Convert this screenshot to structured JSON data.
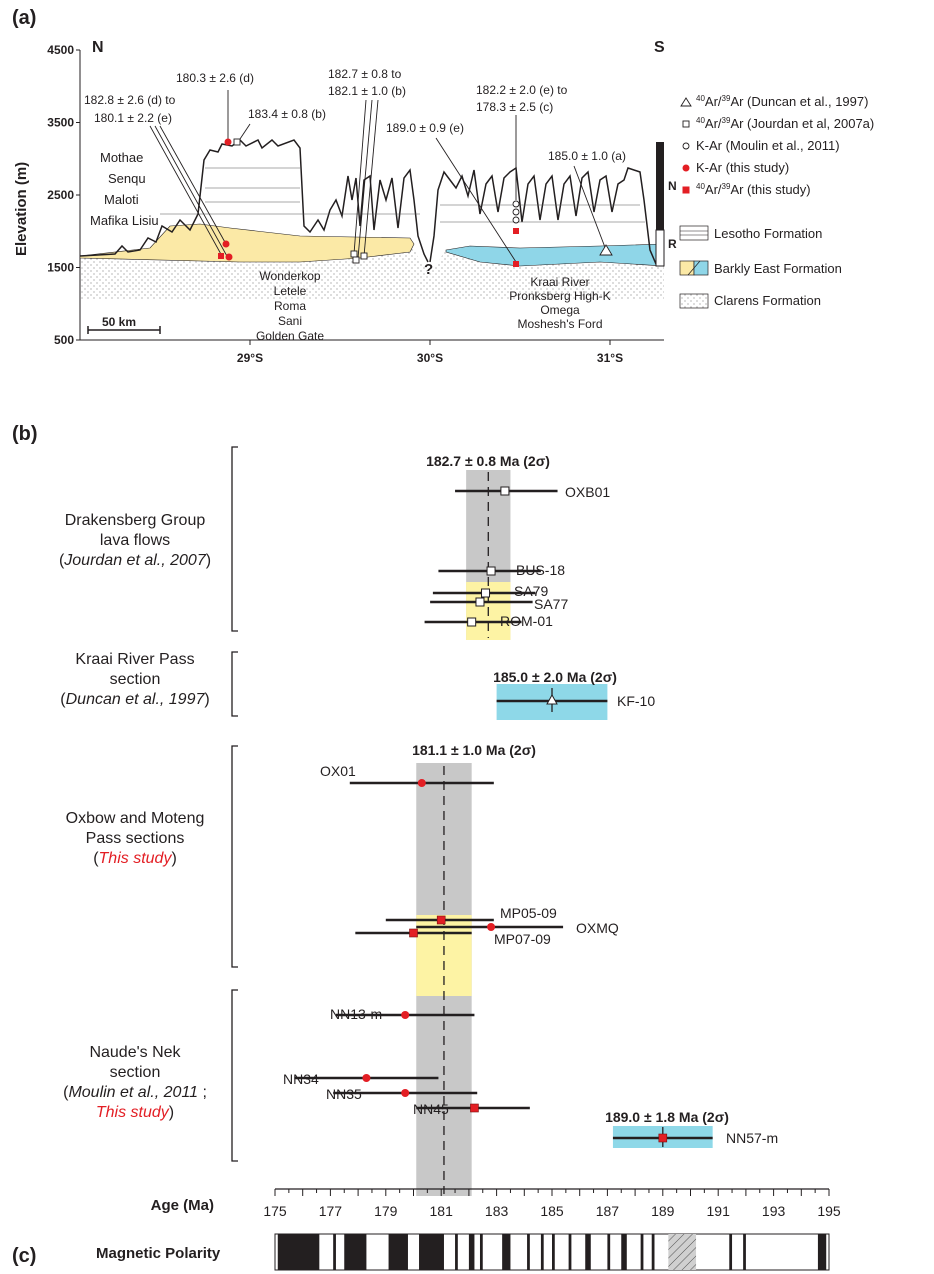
{
  "panel_a": {
    "label": "(a)",
    "north": "N",
    "south": "S",
    "ylabel": "Elevation (m)",
    "y_ticks": [
      {
        "v": 4500,
        "t": "4500"
      },
      {
        "v": 3500,
        "t": "3500"
      },
      {
        "v": 2500,
        "t": "2500"
      },
      {
        "v": 1500,
        "t": "1500"
      },
      {
        "v": 500,
        "t": "500"
      }
    ],
    "x_ticks": [
      {
        "v": 29,
        "t": "29°S"
      },
      {
        "v": 30,
        "t": "30°S"
      },
      {
        "v": 31,
        "t": "31°S"
      }
    ],
    "scale_bar": "50 km",
    "question_mark": "?",
    "formations_north": [
      "Mothae",
      "Senqu",
      "Maloti",
      "Mafika Lisiu"
    ],
    "formations_north_lower": [
      "Wonderkop",
      "Letele",
      "Roma",
      "Sani",
      "Golden Gate"
    ],
    "formations_south": [
      "Kraai River",
      "Pronksberg High-K",
      "Omega",
      "Moshesh's Ford"
    ],
    "age_labels": {
      "d1": "180.3 ± 2.6 (d)",
      "de": [
        "182.8 ± 2.6 (d) to",
        "180.1 ± 2.2 (e)"
      ],
      "b1": "183.4 ± 0.8 (b)",
      "b2": [
        "182.7 ± 0.8 to",
        "182.1 ± 1.0 (b)"
      ],
      "ec": [
        "182.2 ± 2.0 (e) to",
        "178.3 ± 2.5 (c)"
      ],
      "e1": "189.0 ± 0.9 (e)",
      "a1": "185.0 ± 1.0 (a)"
    },
    "polarity_column": {
      "n": "N",
      "r": "R"
    },
    "legend": [
      {
        "symbol": "triangle",
        "sup": "40",
        "mid": "Ar/",
        "sup2": "39",
        "text": "Ar (Duncan et al., 1997)"
      },
      {
        "symbol": "square-open",
        "sup": "40",
        "mid": "Ar/",
        "sup2": "39",
        "text": "Ar (Jourdan et al, 2007a)"
      },
      {
        "symbol": "circle-open",
        "sup": "",
        "mid": "",
        "sup2": "",
        "text": "K-Ar (Moulin et al., 2011)"
      },
      {
        "symbol": "circle-red",
        "sup": "",
        "mid": "",
        "sup2": "",
        "text": "K-Ar (this study)"
      },
      {
        "symbol": "square-red",
        "sup": "40",
        "mid": "Ar/",
        "sup2": "39",
        "text": "Ar (this study)"
      }
    ],
    "formation_legend": [
      "Lesotho Formation",
      "Barkly East Formation",
      "Clarens Formation"
    ]
  },
  "panel_b": {
    "label": "(b)",
    "groups": [
      {
        "lines": [
          "Drakensberg Group",
          "lava flows"
        ],
        "cite": "Jourdan et al., 2007",
        "cite_color": "#231f20"
      },
      {
        "lines": [
          "Kraai River Pass",
          "section"
        ],
        "cite": "Duncan et al., 1997",
        "cite_color": "#231f20"
      },
      {
        "lines": [
          "Oxbow and Moteng",
          "Pass sections"
        ],
        "cite": "This study",
        "cite_color": "#e31e24"
      },
      {
        "lines": [
          "Naude's Nek",
          "section"
        ],
        "cite": "Moulin et al., 2011",
        "cite_suffix": " ;",
        "cite2": "This study",
        "cite_color": "#231f20",
        "cite2_color": "#e31e24"
      }
    ],
    "means": [
      {
        "text": "182.7 ± 0.8 Ma (2σ)",
        "value": 182.7,
        "err": 0.8
      },
      {
        "text": "185.0 ± 2.0 Ma (2σ)",
        "value": 185.0,
        "err": 2.0
      },
      {
        "text": "181.1 ± 1.0 Ma (2σ)",
        "value": 181.1,
        "err": 1.0
      },
      {
        "text": "189.0 ± 1.8 Ma (2σ)",
        "value": 189.0,
        "err": 1.8
      }
    ]
  },
  "panel_c": {
    "label": "(c)",
    "title": "Magnetic Polarity"
  },
  "colors": {
    "gray_band": "#c8c8c8",
    "yellow_band": "#fdf3a4",
    "blue_band": "#8ed8e8",
    "red": "#e31e24",
    "dark": "#231f20",
    "barkly_fill": "#fbe9a6",
    "blue_fill": "#8fd6e8"
  },
  "chart_data": {
    "type": "scatter",
    "title": "",
    "xlabel": "Age (Ma)",
    "xlim": [
      175,
      195
    ],
    "x_tick_labels": [
      "175",
      "177",
      "179",
      "181",
      "183",
      "185",
      "187",
      "189",
      "191",
      "193",
      "195"
    ],
    "series": [
      {
        "name": "40Ar/39Ar (Jourdan et al, 2007a)",
        "marker": "square-open",
        "points": [
          {
            "label": "OXB01",
            "age": 183.3,
            "lo": 181.5,
            "hi": 185.2
          },
          {
            "label": "BUS-18",
            "age": 182.8,
            "lo": 180.9,
            "hi": 184.6
          },
          {
            "label": "SA79",
            "age": 182.6,
            "lo": 180.7,
            "hi": 184.4
          },
          {
            "label": "SA77",
            "age": 182.4,
            "lo": 180.6,
            "hi": 184.3
          },
          {
            "label": "ROM-01",
            "age": 182.1,
            "lo": 180.4,
            "hi": 183.9
          }
        ]
      },
      {
        "name": "40Ar/39Ar (Duncan et al., 1997)",
        "marker": "triangle",
        "points": [
          {
            "label": "KF-10",
            "age": 185.0,
            "lo": 183.0,
            "hi": 187.0
          }
        ]
      },
      {
        "name": "K-Ar (this study)",
        "marker": "circle-red",
        "points": [
          {
            "label": "OX01",
            "age": 180.3,
            "lo": 177.7,
            "hi": 182.9
          },
          {
            "label": "OXMQ",
            "age": 182.8,
            "lo": 180.1,
            "hi": 185.4
          },
          {
            "label": "NN13-m",
            "age": 179.7,
            "lo": 177.2,
            "hi": 182.2
          },
          {
            "label": "NN34",
            "age": 178.3,
            "lo": 175.7,
            "hi": 180.9
          },
          {
            "label": "NN35",
            "age": 179.7,
            "lo": 177.1,
            "hi": 182.3
          }
        ]
      },
      {
        "name": "40Ar/39Ar (this study)",
        "marker": "square-red",
        "points": [
          {
            "label": "MP05-09",
            "age": 181.0,
            "lo": 179.0,
            "hi": 182.9
          },
          {
            "label": "MP07-09",
            "age": 180.0,
            "lo": 177.9,
            "hi": 182.1
          },
          {
            "label": "NN45",
            "age": 182.2,
            "lo": 180.1,
            "hi": 184.2
          },
          {
            "label": "NN57-m",
            "age": 189.0,
            "lo": 187.2,
            "hi": 190.8
          }
        ]
      }
    ],
    "mean_bands": [
      {
        "value": 182.7,
        "err": 0.8,
        "color": "gray"
      },
      {
        "value": 181.1,
        "err": 1.0,
        "color": "gray"
      },
      {
        "value": 185.0,
        "err": 2.0,
        "color": "blue"
      },
      {
        "value": 189.0,
        "err": 1.8,
        "color": "blue"
      }
    ],
    "polarity_normal_intervals": [
      [
        175.1,
        176.6
      ],
      [
        177.1,
        177.2
      ],
      [
        177.5,
        178.3
      ],
      [
        179.1,
        179.8
      ],
      [
        180.2,
        181.1
      ],
      [
        181.5,
        181.6
      ],
      [
        182.0,
        182.2
      ],
      [
        182.4,
        182.5
      ],
      [
        183.2,
        183.5
      ],
      [
        184.1,
        184.2
      ],
      [
        184.6,
        184.7
      ],
      [
        185.0,
        185.1
      ],
      [
        185.6,
        185.7
      ],
      [
        186.2,
        186.4
      ],
      [
        187.0,
        187.1
      ],
      [
        187.5,
        187.7
      ],
      [
        188.2,
        188.3
      ],
      [
        188.6,
        188.7
      ],
      [
        191.4,
        191.5
      ],
      [
        191.9,
        192.0
      ],
      [
        194.6,
        194.9
      ]
    ],
    "polarity_unknown_interval": [
      189.2,
      190.2
    ]
  }
}
